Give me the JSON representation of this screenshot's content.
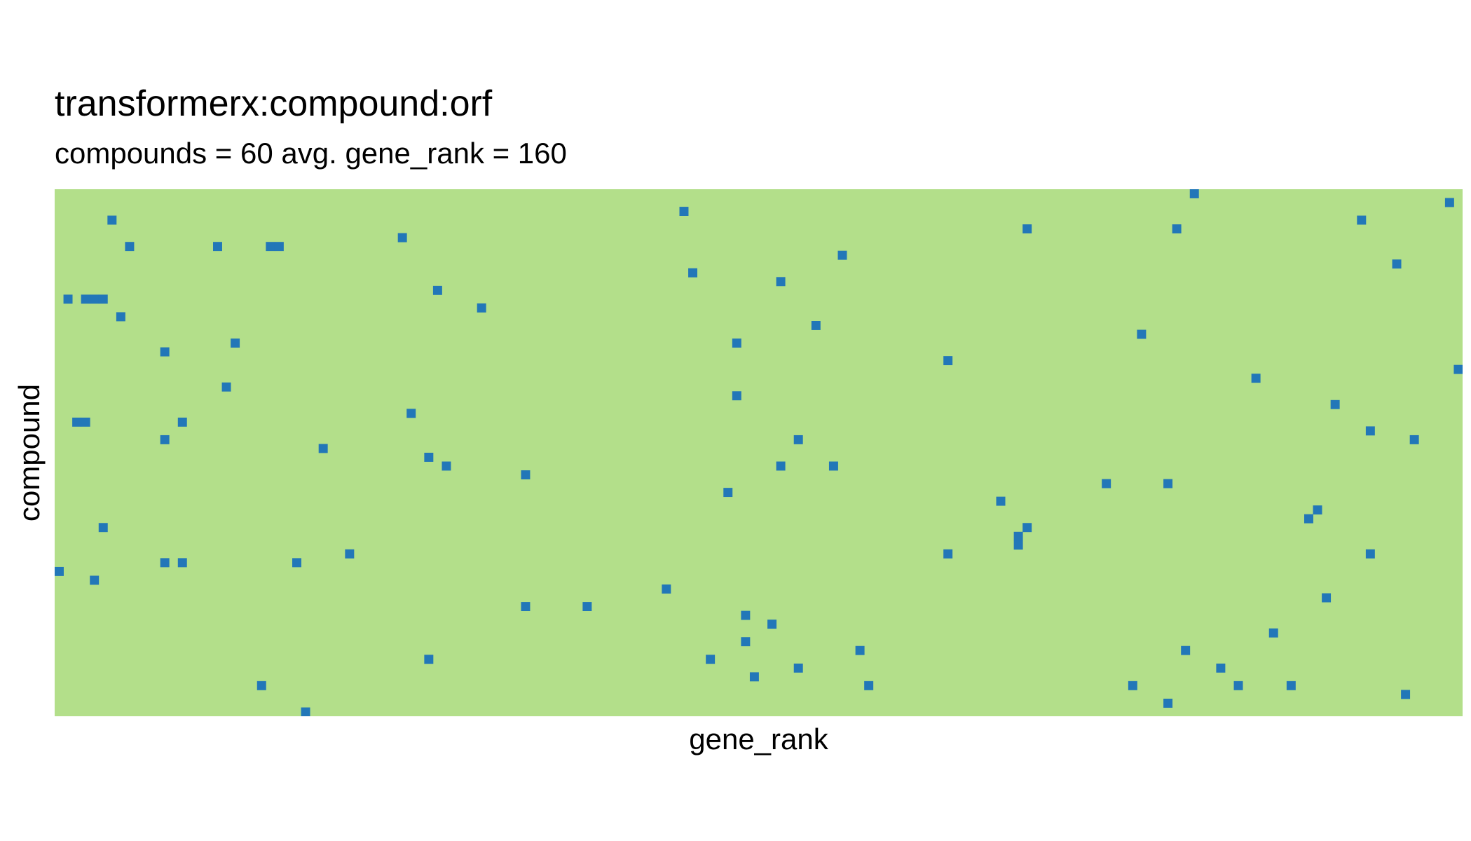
{
  "chart_data": {
    "type": "heatmap",
    "title": "transformerx:compound:orf",
    "subtitle": "compounds = 60 avg. gene_rank = 160",
    "xlabel": "gene_rank",
    "ylabel": "compound",
    "x_ticks": false,
    "y_ticks": false,
    "grid": false,
    "colors": {
      "background": "#b3df8a",
      "hit": "#2277b8"
    },
    "n_columns": 160,
    "n_rows": 60,
    "hits": [
      [
        129,
        0
      ],
      [
        71,
        2
      ],
      [
        158,
        1
      ],
      [
        6,
        3
      ],
      [
        148,
        3
      ],
      [
        110,
        4
      ],
      [
        127,
        4
      ],
      [
        39,
        5
      ],
      [
        8,
        6
      ],
      [
        18,
        6
      ],
      [
        24,
        6
      ],
      [
        25,
        6
      ],
      [
        89,
        7
      ],
      [
        152,
        8
      ],
      [
        72,
        9
      ],
      [
        82,
        10
      ],
      [
        43,
        11
      ],
      [
        1,
        12
      ],
      [
        3,
        12
      ],
      [
        4,
        12
      ],
      [
        5,
        12
      ],
      [
        48,
        13
      ],
      [
        7,
        14
      ],
      [
        86,
        15
      ],
      [
        77,
        17
      ],
      [
        20,
        17
      ],
      [
        123,
        16
      ],
      [
        12,
        18
      ],
      [
        101,
        19
      ],
      [
        136,
        21
      ],
      [
        159,
        20
      ],
      [
        19,
        22
      ],
      [
        77,
        23
      ],
      [
        145,
        24
      ],
      [
        40,
        25
      ],
      [
        2,
        26
      ],
      [
        3,
        26
      ],
      [
        14,
        26
      ],
      [
        149,
        27
      ],
      [
        12,
        28
      ],
      [
        84,
        28
      ],
      [
        154,
        28
      ],
      [
        30,
        29
      ],
      [
        42,
        30
      ],
      [
        44,
        31
      ],
      [
        82,
        31
      ],
      [
        88,
        31
      ],
      [
        53,
        32
      ],
      [
        119,
        33
      ],
      [
        126,
        33
      ],
      [
        76,
        34
      ],
      [
        107,
        35
      ],
      [
        143,
        36
      ],
      [
        142,
        37
      ],
      [
        5,
        38
      ],
      [
        110,
        38
      ],
      [
        109,
        39
      ],
      [
        33,
        41
      ],
      [
        101,
        41
      ],
      [
        109,
        40
      ],
      [
        149,
        41
      ],
      [
        14,
        42
      ],
      [
        12,
        42
      ],
      [
        27,
        42
      ],
      [
        0,
        43
      ],
      [
        4,
        44
      ],
      [
        69,
        45
      ],
      [
        144,
        46
      ],
      [
        53,
        47
      ],
      [
        60,
        47
      ],
      [
        78,
        48
      ],
      [
        81,
        49
      ],
      [
        138,
        50
      ],
      [
        78,
        51
      ],
      [
        91,
        52
      ],
      [
        128,
        52
      ],
      [
        42,
        53
      ],
      [
        74,
        53
      ],
      [
        84,
        54
      ],
      [
        132,
        54
      ],
      [
        79,
        55
      ],
      [
        23,
        56
      ],
      [
        92,
        56
      ],
      [
        122,
        56
      ],
      [
        134,
        56
      ],
      [
        140,
        56
      ],
      [
        153,
        57
      ],
      [
        126,
        58
      ],
      [
        28,
        59
      ]
    ]
  }
}
